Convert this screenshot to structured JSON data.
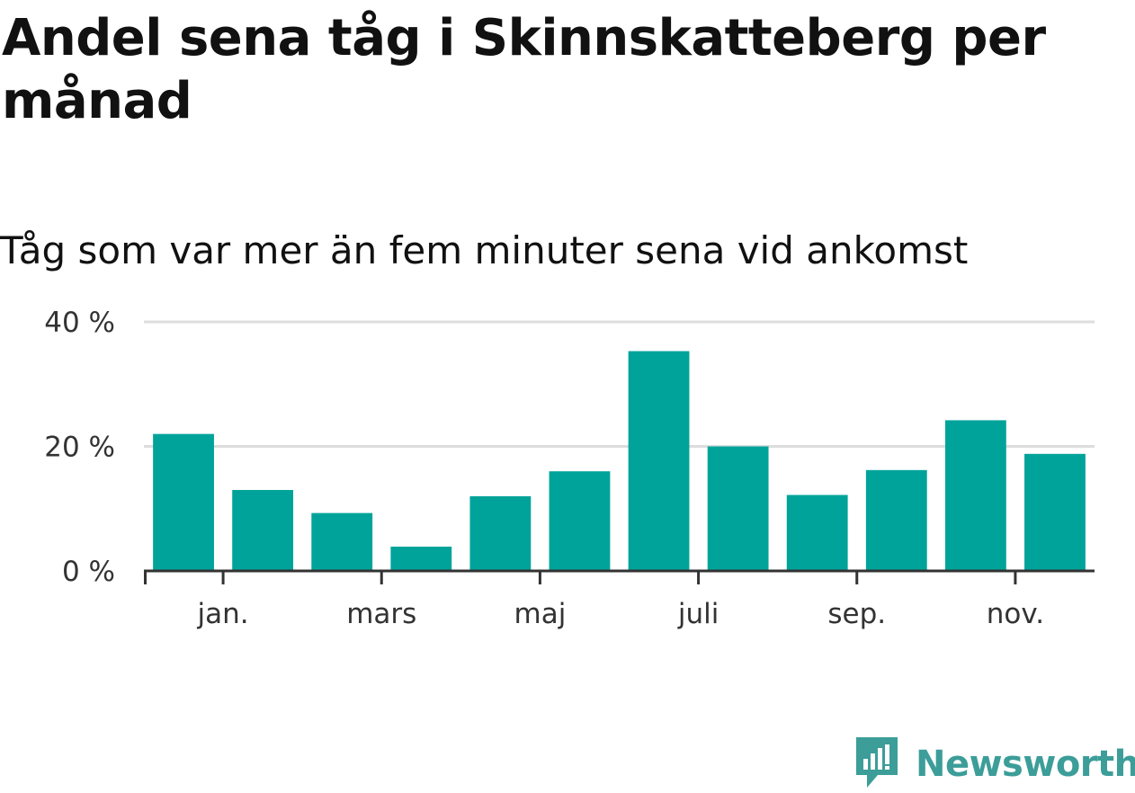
{
  "title": "Andel sena tåg i Skinnskatteberg per månad",
  "subtitle": "Tåg som var mer än fem minuter sena vid ankomst",
  "brand": {
    "name": "Newsworthy",
    "icon": "newsworthy-logo-icon",
    "color": "#3c9d99"
  },
  "chart_data": {
    "type": "bar",
    "y_unit": "%",
    "ylim": [
      0,
      40
    ],
    "y_ticks": [
      {
        "value": 0,
        "label": "0 %"
      },
      {
        "value": 20,
        "label": "20 %"
      },
      {
        "value": 40,
        "label": "40 %"
      }
    ],
    "x_tick_labels": [
      "jan.",
      "mars",
      "maj",
      "juli",
      "sep.",
      "nov."
    ],
    "bar_color": "#00a39a",
    "grid": true,
    "values": [
      22,
      13,
      9.3,
      3.9,
      12,
      16,
      35.3,
      20,
      12.2,
      16.2,
      24.2,
      18.8
    ]
  }
}
